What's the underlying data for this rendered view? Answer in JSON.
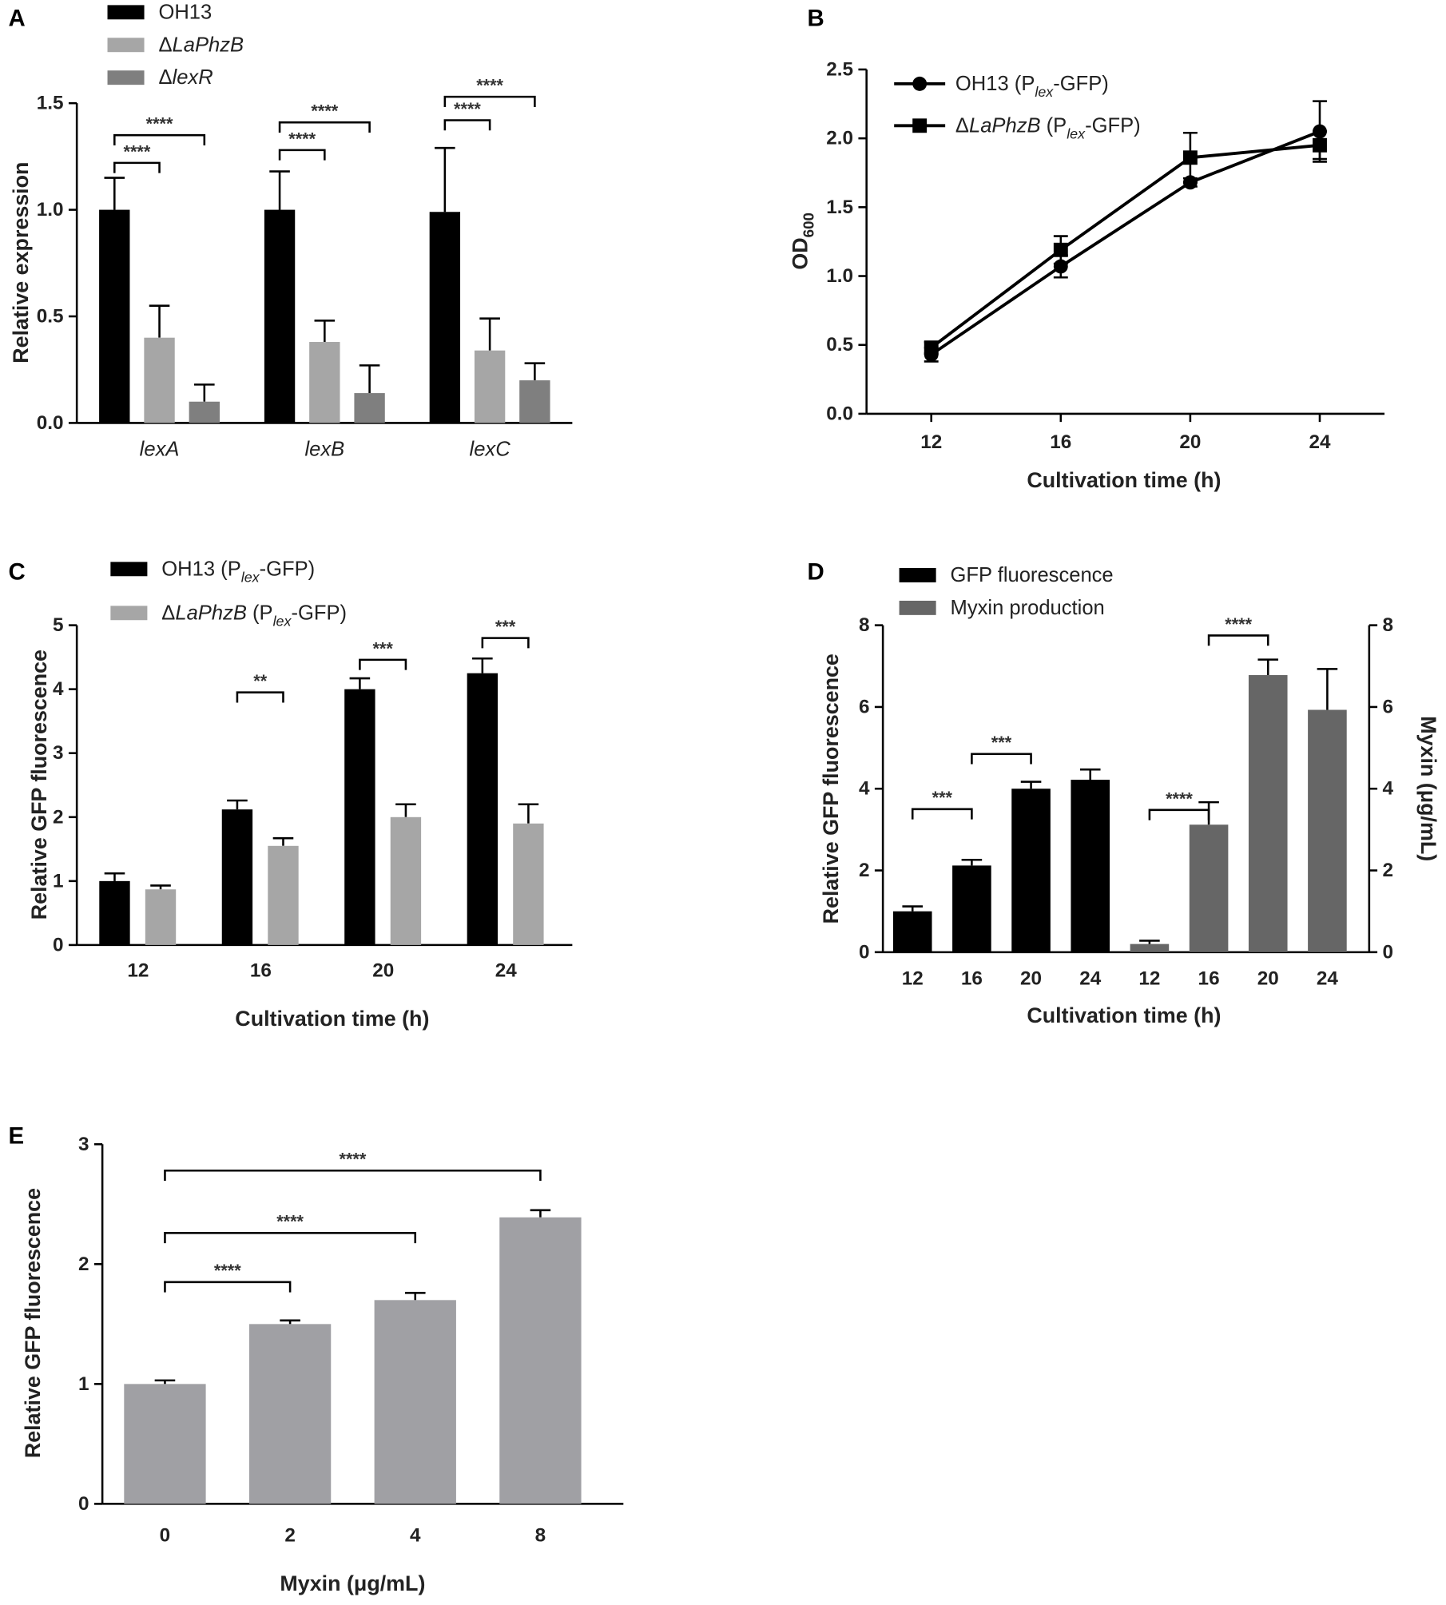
{
  "chart_data": [
    {
      "type": "bar",
      "panel": "A",
      "ylabel": "Relative expression",
      "categories": [
        "lexA",
        "lexB",
        "lexC"
      ],
      "series": [
        {
          "name": "OH13",
          "color": "#000000",
          "values": [
            1.0,
            1.0,
            0.99
          ],
          "errors": [
            0.15,
            0.18,
            0.3
          ]
        },
        {
          "name": "ΔLaPhzB",
          "color": "#a6a6a6",
          "values": [
            0.4,
            0.38,
            0.34
          ],
          "errors": [
            0.15,
            0.1,
            0.15
          ]
        },
        {
          "name": "ΔlexR",
          "color": "#7f7f7f",
          "values": [
            0.1,
            0.14,
            0.2
          ],
          "errors": [
            0.08,
            0.13,
            0.08
          ]
        }
      ],
      "ylim": [
        0,
        1.5
      ],
      "yticks": [
        {
          "value": 0,
          "label": "0.0"
        },
        0.5,
        {
          "value": 1,
          "label": "1.0"
        },
        1.5
      ],
      "annotations": [
        "****",
        "****",
        "****",
        "****",
        "****",
        "****"
      ]
    },
    {
      "type": "line",
      "panel": "B",
      "ylabel": "OD600",
      "xlabel": "Cultivation time (h)",
      "x": [
        12,
        16,
        20,
        24
      ],
      "series": [
        {
          "name": "OH13 (Plex-GFP)",
          "color": "#000000",
          "marker": "circle",
          "values": [
            0.43,
            1.07,
            1.68,
            2.05
          ],
          "errors": [
            0.05,
            0.08,
            0.03,
            0.22
          ]
        },
        {
          "name": "ΔLaPhzB (Plex-GFP)",
          "color": "#000000",
          "marker": "square",
          "values": [
            0.48,
            1.19,
            1.86,
            1.95
          ],
          "errors": [
            0.04,
            0.1,
            0.18,
            0.1
          ]
        }
      ],
      "xlim": [
        10,
        26
      ],
      "xticks": [
        12,
        16,
        20,
        24
      ],
      "ylim": [
        0,
        2.5
      ],
      "yticks": [
        {
          "value": 0,
          "label": "0.0"
        },
        0.5,
        {
          "value": 1,
          "label": "1.0"
        },
        1.5,
        {
          "value": 2,
          "label": "2.0"
        },
        2.5
      ]
    },
    {
      "type": "bar",
      "panel": "C",
      "ylabel": "Relative GFP fluorescence",
      "xlabel": "Cultivation time (h)",
      "categories": [
        "12",
        "16",
        "20",
        "24"
      ],
      "series": [
        {
          "name": "OH13 (Plex-GFP)",
          "color": "#000000",
          "values": [
            1.0,
            2.12,
            4.0,
            4.25
          ],
          "errors": [
            0.12,
            0.14,
            0.17,
            0.23
          ]
        },
        {
          "name": "ΔLaPhzB (Plex-GFP)",
          "color": "#a6a6a6",
          "values": [
            0.87,
            1.55,
            2.0,
            1.9
          ],
          "errors": [
            0.06,
            0.12,
            0.2,
            0.3
          ]
        }
      ],
      "ylim": [
        0,
        5
      ],
      "yticks": [
        0,
        1,
        2,
        3,
        4,
        5
      ],
      "annotations": [
        "**",
        "***",
        "***"
      ]
    },
    {
      "type": "bar",
      "panel": "D",
      "ylabel": "Relative GFP fluorescence",
      "y2label": "Myxin (μg/mL)",
      "xlabel": "Cultivation time (h)",
      "categories": [
        "12",
        "16",
        "20",
        "24",
        "12",
        "16",
        "20",
        "24"
      ],
      "series": [
        {
          "name": "GFP fluorescence",
          "color": "#000000",
          "values": [
            1.0,
            2.12,
            4.0,
            4.22,
            null,
            null,
            null,
            null
          ],
          "errors": [
            0.12,
            0.14,
            0.17,
            0.25,
            null,
            null,
            null,
            null
          ]
        },
        {
          "name": "Myxin production",
          "color": "#666666",
          "axis": "y2",
          "values": [
            null,
            null,
            null,
            null,
            0.2,
            3.12,
            6.78,
            5.93
          ],
          "errors": [
            null,
            null,
            null,
            null,
            0.08,
            0.55,
            0.38,
            1.0
          ]
        }
      ],
      "ylim": [
        0,
        8
      ],
      "yticks": [
        0,
        2,
        4,
        6,
        8
      ],
      "y2lim": [
        0,
        8
      ],
      "y2ticks": [
        0,
        2,
        4,
        6,
        8
      ],
      "annotations": [
        "***",
        "***",
        "****",
        "****"
      ]
    },
    {
      "type": "bar",
      "panel": "E",
      "ylabel": "Relative GFP fluorescence",
      "xlabel": "Myxin (μg/mL)",
      "categories": [
        "0",
        "2",
        "4",
        "8"
      ],
      "color": "#a0a0a4",
      "values": [
        1.0,
        1.5,
        1.7,
        2.39
      ],
      "errors": [
        0.03,
        0.03,
        0.06,
        0.06
      ],
      "ylim": [
        0,
        3
      ],
      "yticks": [
        0,
        1,
        2,
        3
      ],
      "annotations": [
        "****",
        "****",
        "****"
      ]
    }
  ]
}
